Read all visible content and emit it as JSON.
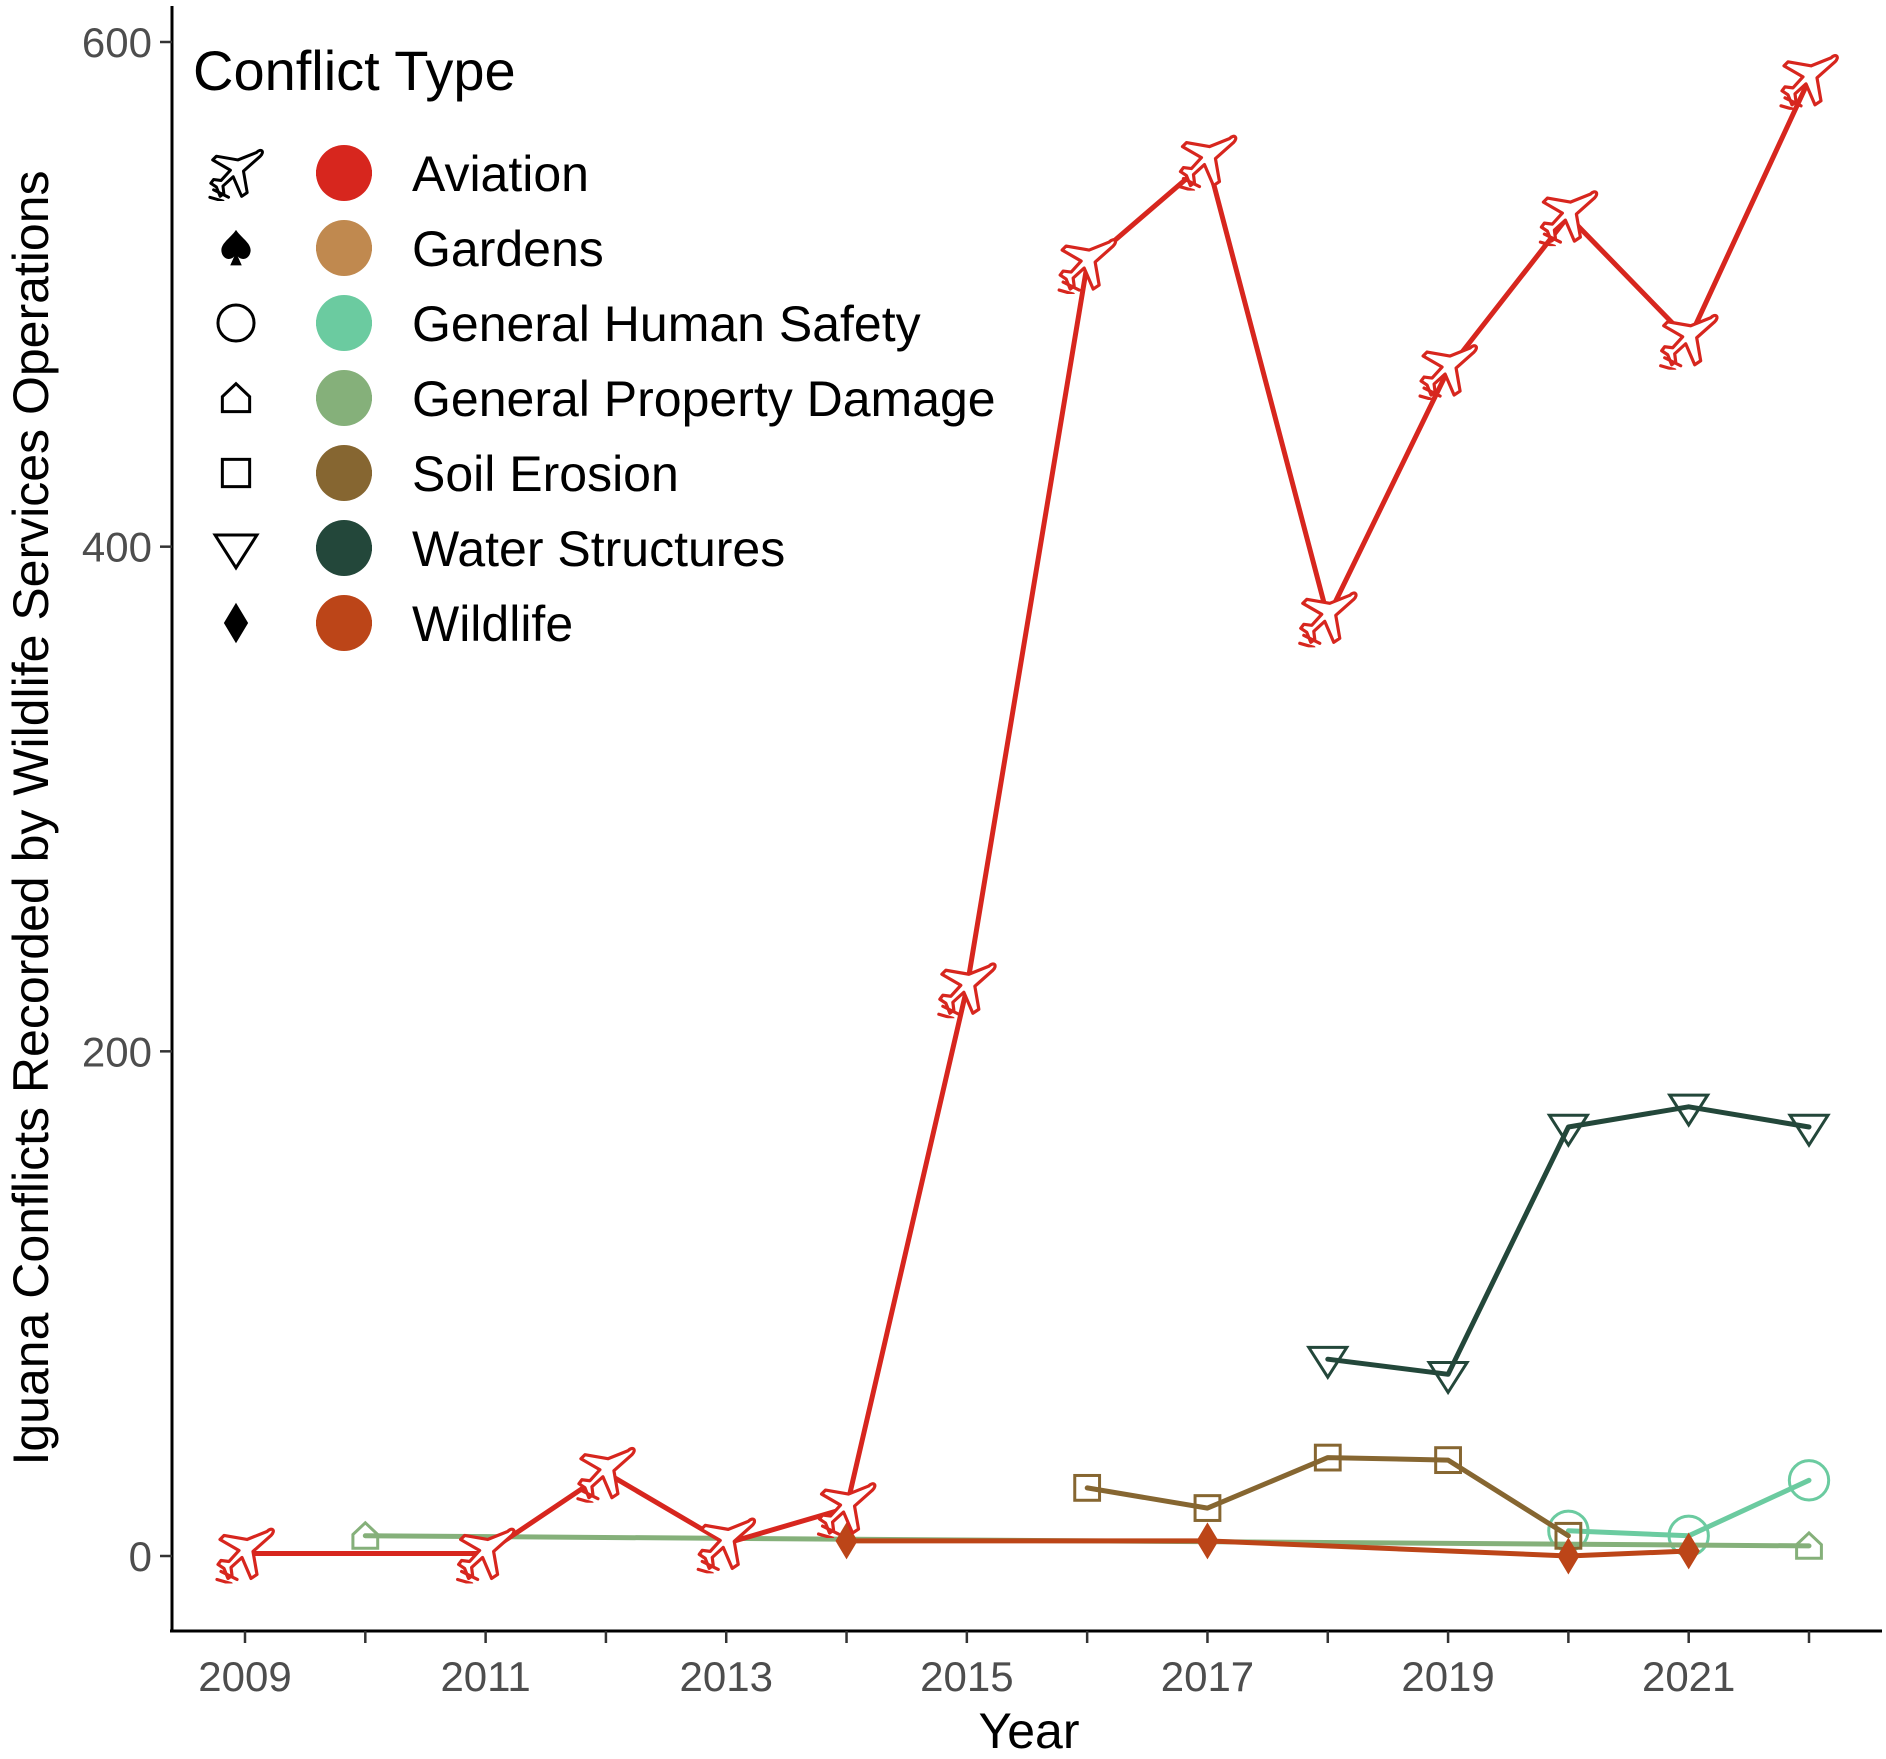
{
  "chart_data": {
    "type": "line",
    "xlabel": "Year",
    "ylabel": "Iguana Conflicts Recorded by Wildlife Services Operations",
    "xlim": [
      2008.6,
      2022.6
    ],
    "ylim": [
      -25,
      615
    ],
    "x_ticks": [
      2009,
      2011,
      2013,
      2015,
      2017,
      2019,
      2021
    ],
    "x_minor_ticks": [
      2010,
      2012,
      2014,
      2016,
      2018,
      2020,
      2022
    ],
    "y_ticks": [
      0,
      200,
      400,
      600
    ],
    "grid": false,
    "legend": {
      "title": "Conflict Type",
      "placement": "top-left"
    },
    "series": [
      {
        "name": "Aviation",
        "color": "#D7261E",
        "marker": "airplane-icon",
        "x": [
          2009,
          2011,
          2012,
          2013,
          2014,
          2015,
          2016,
          2017,
          2018,
          2019,
          2020,
          2021,
          2022
        ],
        "y": [
          1,
          1,
          33,
          5,
          19,
          225,
          512,
          553,
          372,
          470,
          531,
          482,
          585
        ]
      },
      {
        "name": "Gardens",
        "color": "#C0894F",
        "marker": "spade-icon",
        "x": [],
        "y": []
      },
      {
        "name": "General Human Safety",
        "color": "#6BCBA0",
        "marker": "circle-icon",
        "x": [
          2020,
          2021,
          2022
        ],
        "y": [
          10,
          8,
          30
        ]
      },
      {
        "name": "General Property Damage",
        "color": "#85B07A",
        "marker": "pentagon-icon",
        "x": [
          2010,
          2022
        ],
        "y": [
          8,
          4
        ]
      },
      {
        "name": "Soil Erosion",
        "color": "#866631",
        "marker": "square-icon",
        "x": [
          2016,
          2017,
          2018,
          2019,
          2020
        ],
        "y": [
          27,
          19,
          39,
          38,
          8
        ]
      },
      {
        "name": "Water Structures",
        "color": "#23473A",
        "marker": "triangle-down-icon",
        "x": [
          2018,
          2019,
          2020,
          2021,
          2022
        ],
        "y": [
          78,
          72,
          170,
          178,
          170
        ]
      },
      {
        "name": "Wildlife",
        "color": "#BC4518",
        "marker": "diamond-icon",
        "x": [
          2014,
          2017,
          2020,
          2021
        ],
        "y": [
          6,
          6,
          0,
          2
        ]
      }
    ]
  }
}
